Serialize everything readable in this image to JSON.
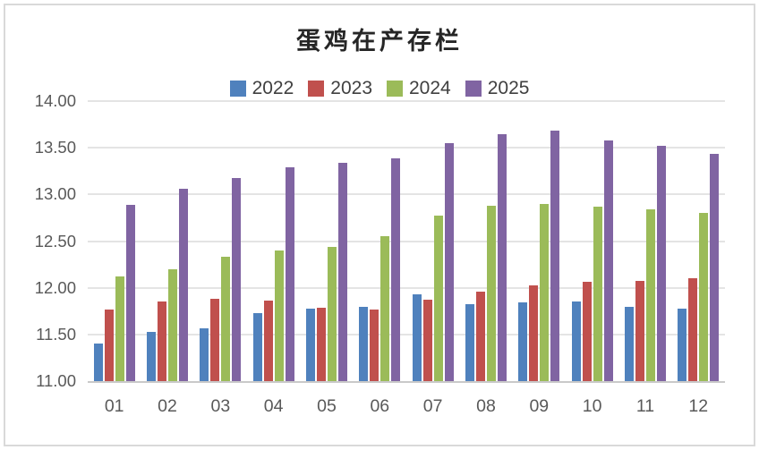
{
  "title": "蛋鸡在产存栏",
  "colors": {
    "frame_border": "#d9d9d9",
    "gridline": "#e4e4e4",
    "axis_line": "#c9c9c9",
    "tick_text": "#595959",
    "legend_text": "#404040",
    "title_text": "#262626",
    "background": "#ffffff"
  },
  "chart_data": {
    "type": "bar",
    "title": "蛋鸡在产存栏",
    "xlabel": "",
    "ylabel": "",
    "ylim": [
      11.0,
      14.0
    ],
    "ytick_step": 0.5,
    "grid": true,
    "legend_position": "top-center",
    "yticks": [
      "14.00",
      "13.50",
      "13.00",
      "12.50",
      "12.00",
      "11.50",
      "11.00"
    ],
    "categories": [
      "01",
      "02",
      "03",
      "04",
      "05",
      "06",
      "07",
      "08",
      "09",
      "10",
      "11",
      "12"
    ],
    "series": [
      {
        "name": "2022",
        "color": "#4f81bd",
        "values": [
          11.4,
          11.53,
          11.57,
          11.73,
          11.78,
          11.8,
          11.93,
          11.82,
          11.84,
          11.85,
          11.8,
          11.78
        ]
      },
      {
        "name": "2023",
        "color": "#c0504d",
        "values": [
          11.77,
          11.85,
          11.88,
          11.86,
          11.79,
          11.77,
          11.87,
          11.96,
          12.03,
          12.06,
          12.07,
          12.1
        ]
      },
      {
        "name": "2024",
        "color": "#9bbb59",
        "values": [
          12.12,
          12.2,
          12.33,
          12.4,
          12.44,
          12.55,
          12.77,
          12.88,
          12.9,
          12.87,
          12.84,
          12.8
        ]
      },
      {
        "name": "2025",
        "color": "#8064a2",
        "values": [
          12.89,
          13.06,
          13.18,
          13.29,
          13.34,
          13.39,
          13.55,
          13.65,
          13.68,
          13.58,
          13.52,
          13.43
        ]
      }
    ]
  }
}
